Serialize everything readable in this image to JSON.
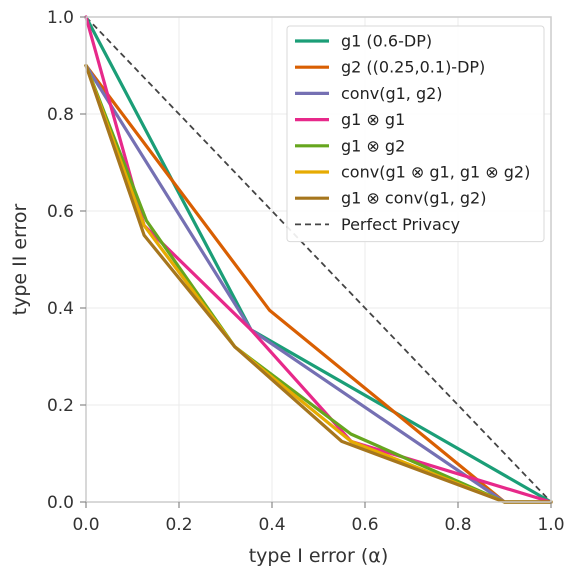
{
  "chart_data": {
    "type": "line",
    "title": "",
    "xlabel": "type I error (α)",
    "ylabel": "type II error",
    "xlim": [
      0,
      1
    ],
    "ylim": [
      0,
      1
    ],
    "xticks": [
      "0.0",
      "0.2",
      "0.4",
      "0.6",
      "0.8",
      "1.0"
    ],
    "yticks": [
      "0.0",
      "0.2",
      "0.4",
      "0.6",
      "0.8",
      "1.0"
    ],
    "grid": true,
    "legend_position": "top-right",
    "series": [
      {
        "name": "g1 (0.6-DP)",
        "color": "#1b9e77",
        "dash": "solid",
        "x": [
          0,
          0.355,
          1
        ],
        "y": [
          1,
          0.355,
          0
        ]
      },
      {
        "name": "g2 ((0.25,0.1)-DP)",
        "color": "#d95f02",
        "dash": "solid",
        "x": [
          0,
          0.395,
          0.9,
          1
        ],
        "y": [
          0.9,
          0.395,
          0,
          0
        ]
      },
      {
        "name": "conv(g1, g2)",
        "color": "#7570b3",
        "dash": "solid",
        "x": [
          0,
          0.355,
          0.9,
          1
        ],
        "y": [
          0.9,
          0.355,
          0,
          0
        ]
      },
      {
        "name": "g1 ⊗ g1",
        "color": "#e7298a",
        "dash": "solid",
        "x": [
          0,
          0.125,
          0.355,
          0.57,
          1
        ],
        "y": [
          1,
          0.57,
          0.355,
          0.125,
          0
        ]
      },
      {
        "name": "g1 ⊗ g2",
        "color": "#66a61e",
        "dash": "solid",
        "x": [
          0,
          0.13,
          0.32,
          0.57,
          0.9,
          1
        ],
        "y": [
          0.9,
          0.58,
          0.32,
          0.14,
          0,
          0
        ]
      },
      {
        "name": "conv(g1 ⊗ g1, g1 ⊗ g2)",
        "color": "#e6ab02",
        "dash": "solid",
        "x": [
          0,
          0.125,
          0.32,
          0.57,
          0.9,
          1
        ],
        "y": [
          0.9,
          0.57,
          0.32,
          0.125,
          0,
          0
        ]
      },
      {
        "name": "g1 ⊗ conv(g1, g2)",
        "color": "#a6761d",
        "dash": "solid",
        "x": [
          0,
          0.125,
          0.32,
          0.55,
          0.9,
          1
        ],
        "y": [
          0.9,
          0.55,
          0.32,
          0.125,
          0,
          0
        ]
      },
      {
        "name": "Perfect Privacy",
        "color": "#444444",
        "dash": "dashed",
        "x": [
          0,
          1
        ],
        "y": [
          1,
          0
        ]
      }
    ]
  }
}
